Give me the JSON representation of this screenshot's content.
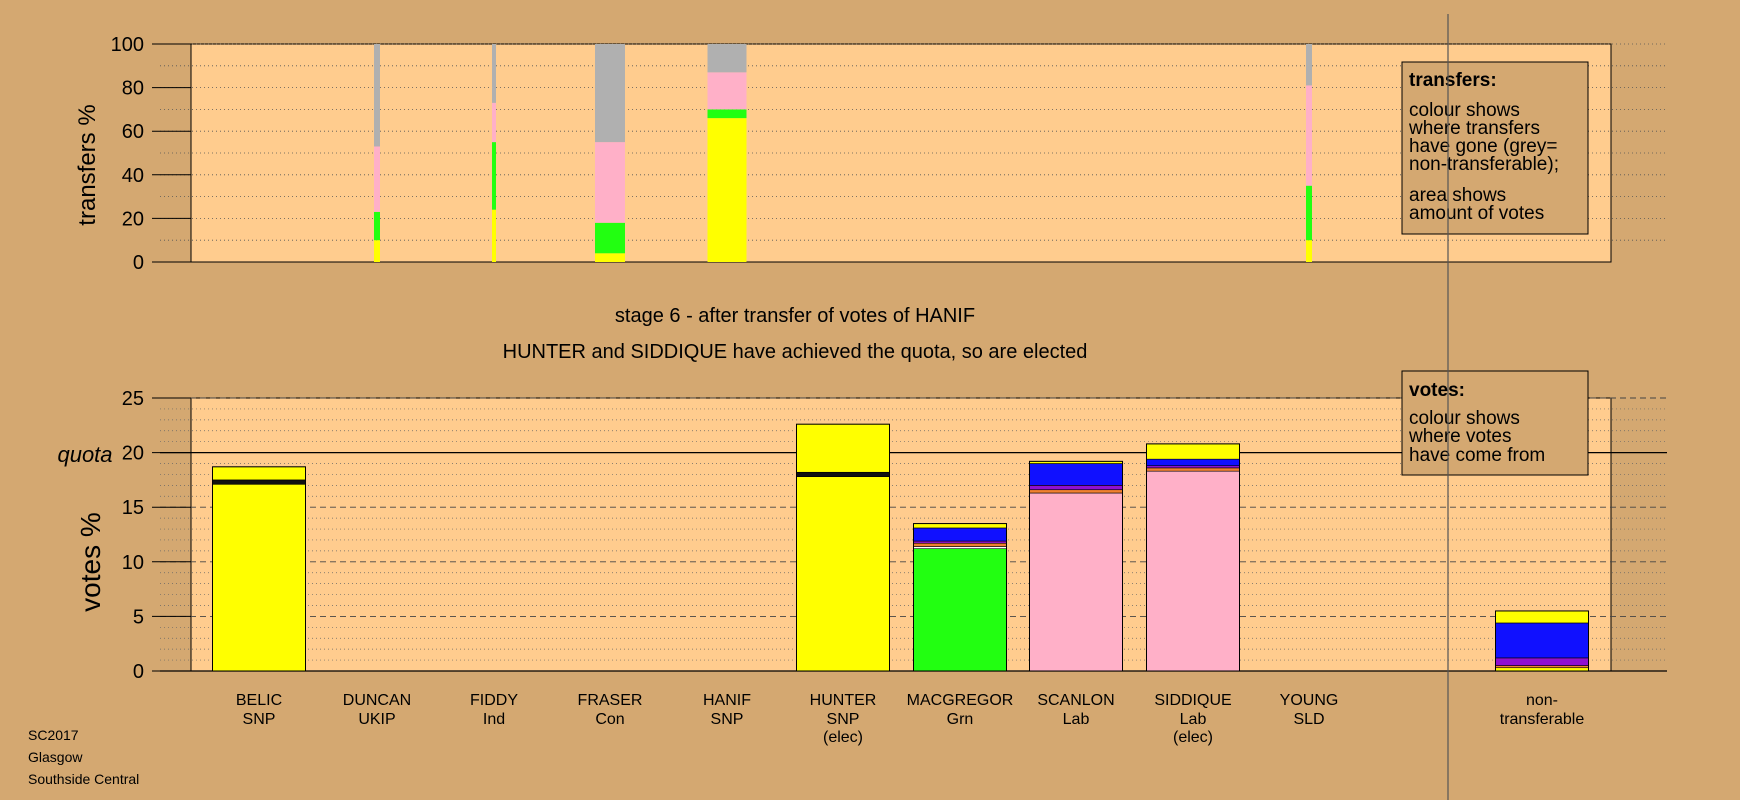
{
  "chart_data": [
    {
      "type": "bar",
      "subtype": "stacked-transfer",
      "ylabel": "transfers %",
      "ylim": [
        0,
        100
      ],
      "yticks": [
        "0",
        "20",
        "40",
        "60",
        "80",
        "100"
      ],
      "categories": [
        "BELIC",
        "DUNCAN",
        "FIDDY",
        "FRASER",
        "HANIF",
        "HUNTER",
        "MACGREGOR",
        "SCANLON",
        "SIDDIQUE",
        "YOUNG"
      ],
      "bars": [
        {
          "candidate": "DUNCAN",
          "segments": [
            {
              "color": "yellow",
              "value": 10
            },
            {
              "color": "green",
              "value": 13
            },
            {
              "color": "pink",
              "value": 30
            },
            {
              "color": "grey",
              "value": 47
            }
          ]
        },
        {
          "candidate": "FIDDY",
          "segments": [
            {
              "color": "yellow",
              "value": 24
            },
            {
              "color": "green",
              "value": 31
            },
            {
              "color": "pink",
              "value": 18
            },
            {
              "color": "grey",
              "value": 27
            }
          ]
        },
        {
          "candidate": "FRASER",
          "segments": [
            {
              "color": "yellow",
              "value": 4
            },
            {
              "color": "green",
              "value": 14
            },
            {
              "color": "pink",
              "value": 37
            },
            {
              "color": "grey",
              "value": 45
            }
          ]
        },
        {
          "candidate": "HANIF",
          "segments": [
            {
              "color": "yellow",
              "value": 66
            },
            {
              "color": "green",
              "value": 4
            },
            {
              "color": "pink",
              "value": 17
            },
            {
              "color": "grey",
              "value": 13
            }
          ]
        },
        {
          "candidate": "YOUNG",
          "segments": [
            {
              "color": "yellow",
              "value": 10
            },
            {
              "color": "green",
              "value": 25
            },
            {
              "color": "pink",
              "value": 46
            },
            {
              "color": "grey",
              "value": 19
            }
          ]
        }
      ],
      "legend": {
        "title": "transfers:",
        "lines": [
          "colour shows",
          "where transfers",
          "have gone (grey=",
          "non-transferable);",
          "area shows",
          "amount of votes"
        ]
      }
    },
    {
      "type": "bar",
      "subtype": "stacked-votes",
      "title": "stage 6 - after transfer of votes of HANIF",
      "subtitle": "HUNTER and SIDDIQUE have achieved the quota, so are elected",
      "ylabel": "votes %",
      "ylim": [
        0,
        25
      ],
      "yticks": [
        "0",
        "5",
        "10",
        "15",
        "20",
        "25"
      ],
      "quota": 20,
      "quota_label": "quota",
      "categories": [
        {
          "name": "BELIC",
          "party": "SNP",
          "note": ""
        },
        {
          "name": "DUNCAN",
          "party": "UKIP",
          "note": ""
        },
        {
          "name": "FIDDY",
          "party": "Ind",
          "note": ""
        },
        {
          "name": "FRASER",
          "party": "Con",
          "note": ""
        },
        {
          "name": "HANIF",
          "party": "SNP",
          "note": ""
        },
        {
          "name": "HUNTER",
          "party": "SNP",
          "note": "(elec)"
        },
        {
          "name": "MACGREGOR",
          "party": "Grn",
          "note": ""
        },
        {
          "name": "SCANLON",
          "party": "Lab",
          "note": ""
        },
        {
          "name": "SIDDIQUE",
          "party": "Lab",
          "note": "(elec)"
        },
        {
          "name": "YOUNG",
          "party": "SLD",
          "note": ""
        }
      ],
      "bars": [
        {
          "candidate": "BELIC",
          "segments": [
            {
              "color": "yellow",
              "value": 17.1
            },
            {
              "color": "black",
              "value": 0.4
            },
            {
              "color": "yellow",
              "value": 1.2
            }
          ]
        },
        {
          "candidate": "HUNTER",
          "segments": [
            {
              "color": "yellow",
              "value": 17.8
            },
            {
              "color": "black",
              "value": 0.4
            },
            {
              "color": "yellow",
              "value": 4.4
            }
          ]
        },
        {
          "candidate": "MACGREGOR",
          "segments": [
            {
              "color": "green",
              "value": 11.2
            },
            {
              "color": "white",
              "value": 0.2
            },
            {
              "color": "orange",
              "value": 0.3
            },
            {
              "color": "purple",
              "value": 0.2
            },
            {
              "color": "blue",
              "value": 1.2
            },
            {
              "color": "yellow",
              "value": 0.4
            }
          ]
        },
        {
          "candidate": "SCANLON",
          "segments": [
            {
              "color": "pink",
              "value": 16.3
            },
            {
              "color": "orange",
              "value": 0.3
            },
            {
              "color": "purple",
              "value": 0.4
            },
            {
              "color": "blue",
              "value": 2.0
            },
            {
              "color": "yellow",
              "value": 0.2
            }
          ]
        },
        {
          "candidate": "SIDDIQUE",
          "segments": [
            {
              "color": "pink",
              "value": 18.3
            },
            {
              "color": "orange",
              "value": 0.3
            },
            {
              "color": "purple",
              "value": 0.2
            },
            {
              "color": "blue",
              "value": 0.6
            },
            {
              "color": "yellow",
              "value": 1.4
            }
          ]
        }
      ],
      "nontransferable": {
        "label": [
          "non-",
          "transferable"
        ],
        "segments": [
          {
            "color": "yellow",
            "value": 0.3
          },
          {
            "color": "orange",
            "value": 0.2
          },
          {
            "color": "purple",
            "value": 0.7
          },
          {
            "color": "blue",
            "value": 3.2
          },
          {
            "color": "yellow",
            "value": 1.1
          }
        ]
      },
      "legend": {
        "title": "votes:",
        "lines": [
          "colour shows",
          "where votes",
          "have come from"
        ]
      }
    }
  ],
  "colors": {
    "background": "#D4A871",
    "plot": "#FFCC8E",
    "yellow": "#FFFF00",
    "green": "#22FF11",
    "pink": "#FFB0C8",
    "grey": "#B0B0B0",
    "blue": "#1010FF",
    "purple": "#9010D0",
    "orange": "#F08030",
    "black": "#111111",
    "white": "#FFFFFF"
  },
  "footer": [
    "SC2017",
    "Glasgow",
    "Southside Central"
  ]
}
